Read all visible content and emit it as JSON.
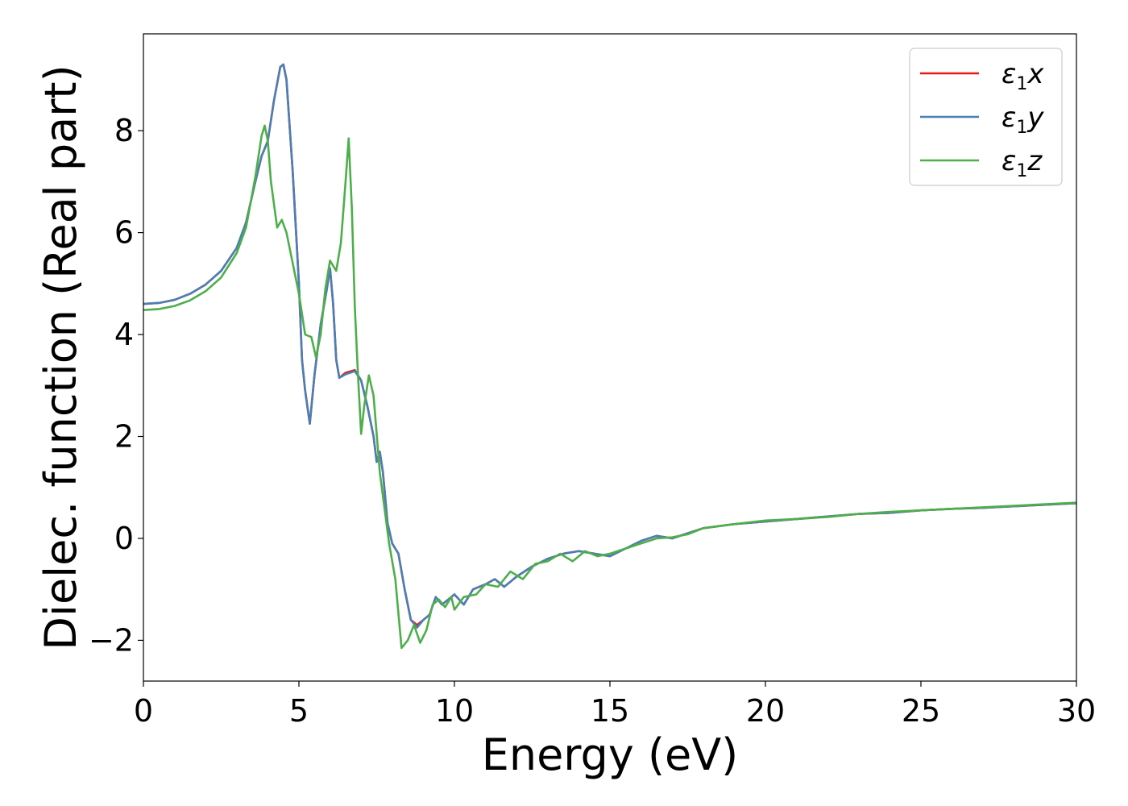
{
  "chart_data": {
    "type": "line",
    "title": "",
    "xlabel": "Energy (eV)",
    "ylabel": "Dielec. function (Real part)",
    "xlim": [
      0,
      30
    ],
    "ylim": [
      -2.8,
      9.9
    ],
    "xticks": [
      0,
      5,
      10,
      15,
      20,
      25,
      30
    ],
    "xtick_labels": [
      "0",
      "5",
      "10",
      "15",
      "20",
      "25",
      "30"
    ],
    "yticks": [
      -2,
      0,
      2,
      4,
      6,
      8
    ],
    "ytick_labels": [
      "−2",
      "0",
      "2",
      "4",
      "6",
      "8"
    ],
    "grid": false,
    "legend_position": "top-right",
    "series": [
      {
        "name": "ε₁x",
        "name_base": "ε",
        "name_sub": "1",
        "name_suffix": "x",
        "color": "#e41a1c",
        "points": [
          [
            0,
            4.6
          ],
          [
            0.5,
            4.62
          ],
          [
            1,
            4.68
          ],
          [
            1.5,
            4.8
          ],
          [
            2,
            4.98
          ],
          [
            2.5,
            5.25
          ],
          [
            3,
            5.7
          ],
          [
            3.3,
            6.2
          ],
          [
            3.6,
            7.0
          ],
          [
            3.8,
            7.5
          ],
          [
            4.0,
            7.8
          ],
          [
            4.2,
            8.6
          ],
          [
            4.4,
            9.25
          ],
          [
            4.5,
            9.3
          ],
          [
            4.6,
            9.0
          ],
          [
            4.8,
            7.2
          ],
          [
            5.0,
            5.0
          ],
          [
            5.1,
            3.5
          ],
          [
            5.2,
            2.9
          ],
          [
            5.35,
            2.25
          ],
          [
            5.5,
            3.2
          ],
          [
            5.7,
            4.2
          ],
          [
            5.9,
            4.9
          ],
          [
            6.0,
            5.3
          ],
          [
            6.1,
            4.6
          ],
          [
            6.2,
            3.5
          ],
          [
            6.3,
            3.15
          ],
          [
            6.5,
            3.25
          ],
          [
            6.8,
            3.3
          ],
          [
            7.0,
            3.1
          ],
          [
            7.2,
            2.6
          ],
          [
            7.4,
            2.0
          ],
          [
            7.5,
            1.5
          ],
          [
            7.6,
            1.7
          ],
          [
            7.7,
            1.3
          ],
          [
            7.85,
            0.3
          ],
          [
            8.0,
            -0.1
          ],
          [
            8.2,
            -0.3
          ],
          [
            8.4,
            -1.0
          ],
          [
            8.6,
            -1.6
          ],
          [
            8.8,
            -1.7
          ],
          [
            9.0,
            -1.6
          ],
          [
            9.2,
            -1.5
          ],
          [
            9.4,
            -1.15
          ],
          [
            9.6,
            -1.3
          ],
          [
            9.8,
            -1.2
          ],
          [
            10.0,
            -1.1
          ],
          [
            10.3,
            -1.3
          ],
          [
            10.6,
            -1.0
          ],
          [
            11.0,
            -0.9
          ],
          [
            11.3,
            -0.8
          ],
          [
            11.6,
            -0.95
          ],
          [
            12.0,
            -0.75
          ],
          [
            12.5,
            -0.55
          ],
          [
            13.0,
            -0.4
          ],
          [
            13.5,
            -0.3
          ],
          [
            14.0,
            -0.25
          ],
          [
            14.5,
            -0.3
          ],
          [
            15.0,
            -0.35
          ],
          [
            15.5,
            -0.2
          ],
          [
            16.0,
            -0.05
          ],
          [
            16.5,
            0.05
          ],
          [
            17.0,
            0.0
          ],
          [
            17.5,
            0.1
          ],
          [
            18.0,
            0.2
          ],
          [
            19.0,
            0.28
          ],
          [
            20.0,
            0.33
          ],
          [
            21.0,
            0.38
          ],
          [
            22.0,
            0.43
          ],
          [
            23.0,
            0.48
          ],
          [
            24.0,
            0.5
          ],
          [
            25.0,
            0.55
          ],
          [
            26.0,
            0.58
          ],
          [
            27.0,
            0.6
          ],
          [
            28.0,
            0.63
          ],
          [
            29.0,
            0.66
          ],
          [
            30.0,
            0.69
          ]
        ]
      },
      {
        "name": "ε₁y",
        "name_base": "ε",
        "name_sub": "1",
        "name_suffix": "y",
        "color": "#4a7fb5",
        "points": [
          [
            0,
            4.6
          ],
          [
            0.5,
            4.62
          ],
          [
            1,
            4.68
          ],
          [
            1.5,
            4.8
          ],
          [
            2,
            4.98
          ],
          [
            2.5,
            5.25
          ],
          [
            3,
            5.7
          ],
          [
            3.3,
            6.2
          ],
          [
            3.6,
            7.0
          ],
          [
            3.8,
            7.5
          ],
          [
            4.0,
            7.8
          ],
          [
            4.2,
            8.6
          ],
          [
            4.4,
            9.25
          ],
          [
            4.5,
            9.3
          ],
          [
            4.6,
            9.0
          ],
          [
            4.8,
            7.2
          ],
          [
            5.0,
            5.0
          ],
          [
            5.1,
            3.5
          ],
          [
            5.2,
            2.9
          ],
          [
            5.35,
            2.25
          ],
          [
            5.5,
            3.2
          ],
          [
            5.7,
            4.2
          ],
          [
            5.9,
            4.9
          ],
          [
            6.0,
            5.3
          ],
          [
            6.1,
            4.6
          ],
          [
            6.2,
            3.5
          ],
          [
            6.3,
            3.15
          ],
          [
            6.5,
            3.22
          ],
          [
            6.8,
            3.28
          ],
          [
            7.0,
            3.1
          ],
          [
            7.2,
            2.6
          ],
          [
            7.4,
            2.0
          ],
          [
            7.5,
            1.5
          ],
          [
            7.6,
            1.7
          ],
          [
            7.7,
            1.3
          ],
          [
            7.85,
            0.3
          ],
          [
            8.0,
            -0.1
          ],
          [
            8.2,
            -0.3
          ],
          [
            8.4,
            -1.0
          ],
          [
            8.6,
            -1.6
          ],
          [
            8.8,
            -1.75
          ],
          [
            9.0,
            -1.6
          ],
          [
            9.2,
            -1.5
          ],
          [
            9.4,
            -1.15
          ],
          [
            9.6,
            -1.3
          ],
          [
            9.8,
            -1.2
          ],
          [
            10.0,
            -1.1
          ],
          [
            10.3,
            -1.3
          ],
          [
            10.6,
            -1.0
          ],
          [
            11.0,
            -0.9
          ],
          [
            11.3,
            -0.8
          ],
          [
            11.6,
            -0.95
          ],
          [
            12.0,
            -0.75
          ],
          [
            12.5,
            -0.55
          ],
          [
            13.0,
            -0.4
          ],
          [
            13.5,
            -0.3
          ],
          [
            14.0,
            -0.25
          ],
          [
            14.5,
            -0.3
          ],
          [
            15.0,
            -0.35
          ],
          [
            15.5,
            -0.2
          ],
          [
            16.0,
            -0.05
          ],
          [
            16.5,
            0.05
          ],
          [
            17.0,
            0.0
          ],
          [
            17.5,
            0.1
          ],
          [
            18.0,
            0.2
          ],
          [
            19.0,
            0.28
          ],
          [
            20.0,
            0.33
          ],
          [
            21.0,
            0.38
          ],
          [
            22.0,
            0.43
          ],
          [
            23.0,
            0.48
          ],
          [
            24.0,
            0.5
          ],
          [
            25.0,
            0.55
          ],
          [
            26.0,
            0.58
          ],
          [
            27.0,
            0.6
          ],
          [
            28.0,
            0.63
          ],
          [
            29.0,
            0.66
          ],
          [
            30.0,
            0.69
          ]
        ]
      },
      {
        "name": "ε₁z",
        "name_base": "ε",
        "name_sub": "1",
        "name_suffix": "z",
        "color": "#4daf4a",
        "points": [
          [
            0,
            4.48
          ],
          [
            0.5,
            4.5
          ],
          [
            1,
            4.56
          ],
          [
            1.5,
            4.67
          ],
          [
            2,
            4.85
          ],
          [
            2.5,
            5.12
          ],
          [
            3,
            5.6
          ],
          [
            3.3,
            6.1
          ],
          [
            3.6,
            7.1
          ],
          [
            3.8,
            7.9
          ],
          [
            3.9,
            8.1
          ],
          [
            4.0,
            7.8
          ],
          [
            4.1,
            7.0
          ],
          [
            4.3,
            6.1
          ],
          [
            4.45,
            6.25
          ],
          [
            4.6,
            6.0
          ],
          [
            4.8,
            5.4
          ],
          [
            5.0,
            4.8
          ],
          [
            5.2,
            4.0
          ],
          [
            5.4,
            3.95
          ],
          [
            5.55,
            3.55
          ],
          [
            5.7,
            4.0
          ],
          [
            5.85,
            4.9
          ],
          [
            6.0,
            5.45
          ],
          [
            6.2,
            5.25
          ],
          [
            6.35,
            5.8
          ],
          [
            6.5,
            7.0
          ],
          [
            6.6,
            7.85
          ],
          [
            6.7,
            6.5
          ],
          [
            6.8,
            4.5
          ],
          [
            6.9,
            3.2
          ],
          [
            7.0,
            2.05
          ],
          [
            7.1,
            2.6
          ],
          [
            7.25,
            3.2
          ],
          [
            7.4,
            2.8
          ],
          [
            7.6,
            1.3
          ],
          [
            7.75,
            0.6
          ],
          [
            7.9,
            -0.1
          ],
          [
            8.1,
            -0.8
          ],
          [
            8.3,
            -2.15
          ],
          [
            8.5,
            -2.0
          ],
          [
            8.7,
            -1.7
          ],
          [
            8.9,
            -2.05
          ],
          [
            9.1,
            -1.8
          ],
          [
            9.3,
            -1.3
          ],
          [
            9.5,
            -1.2
          ],
          [
            9.7,
            -1.35
          ],
          [
            9.9,
            -1.15
          ],
          [
            10.0,
            -1.4
          ],
          [
            10.3,
            -1.15
          ],
          [
            10.7,
            -1.1
          ],
          [
            11.0,
            -0.9
          ],
          [
            11.4,
            -0.95
          ],
          [
            11.8,
            -0.65
          ],
          [
            12.2,
            -0.8
          ],
          [
            12.6,
            -0.5
          ],
          [
            13.0,
            -0.45
          ],
          [
            13.4,
            -0.3
          ],
          [
            13.8,
            -0.45
          ],
          [
            14.2,
            -0.25
          ],
          [
            14.6,
            -0.35
          ],
          [
            15.0,
            -0.3
          ],
          [
            15.5,
            -0.2
          ],
          [
            16.0,
            -0.1
          ],
          [
            16.5,
            0.0
          ],
          [
            17.0,
            0.02
          ],
          [
            17.5,
            0.08
          ],
          [
            18.0,
            0.2
          ],
          [
            19.0,
            0.28
          ],
          [
            20.0,
            0.35
          ],
          [
            21.0,
            0.38
          ],
          [
            22.0,
            0.42
          ],
          [
            23.0,
            0.48
          ],
          [
            24.0,
            0.52
          ],
          [
            25.0,
            0.55
          ],
          [
            26.0,
            0.58
          ],
          [
            27.0,
            0.61
          ],
          [
            28.0,
            0.64
          ],
          [
            29.0,
            0.67
          ],
          [
            30.0,
            0.7
          ]
        ]
      }
    ]
  }
}
